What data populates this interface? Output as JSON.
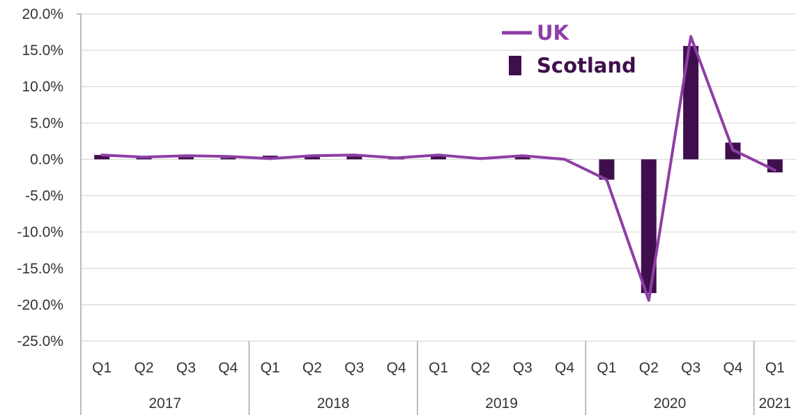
{
  "chart_data": {
    "type": "bar",
    "ylim": [
      -25,
      20
    ],
    "ytick_step": 5,
    "ytick_labels": [
      "20.0%",
      "15.0%",
      "10.0%",
      "5.0%",
      "0.0%",
      "-5.0%",
      "-10.0%",
      "-15.0%",
      "-20.0%",
      "-25.0%"
    ],
    "categories": [
      "Q1",
      "Q2",
      "Q3",
      "Q4",
      "Q1",
      "Q2",
      "Q3",
      "Q4",
      "Q1",
      "Q2",
      "Q3",
      "Q4",
      "Q1",
      "Q2",
      "Q3",
      "Q4",
      "Q1"
    ],
    "year_groups": [
      {
        "label": "2017",
        "count": 4
      },
      {
        "label": "2018",
        "count": 4
      },
      {
        "label": "2019",
        "count": 4
      },
      {
        "label": "2020",
        "count": 4
      },
      {
        "label": "2021",
        "count": 1
      }
    ],
    "series": [
      {
        "name": "Scotland",
        "type": "bar",
        "color": "#3f0f4d",
        "values": [
          0.6,
          0.3,
          0.3,
          0.2,
          0.5,
          0.6,
          0.4,
          0.1,
          0.5,
          0.1,
          0.3,
          0.0,
          -2.8,
          -18.4,
          15.6,
          2.3,
          -1.8
        ]
      },
      {
        "name": "UK",
        "type": "line",
        "color": "#8e3ea6",
        "values": [
          0.6,
          0.3,
          0.5,
          0.4,
          0.1,
          0.5,
          0.6,
          0.2,
          0.6,
          0.1,
          0.5,
          0.0,
          -2.8,
          -19.4,
          16.9,
          1.3,
          -1.5
        ]
      }
    ],
    "legend": {
      "placement": "top-right",
      "items": [
        {
          "label": "UK",
          "color": "#8e3ea6",
          "marker": "line"
        },
        {
          "label": "Scotland",
          "color": "#3f0f4d",
          "marker": "bar"
        }
      ]
    },
    "grid": true
  }
}
